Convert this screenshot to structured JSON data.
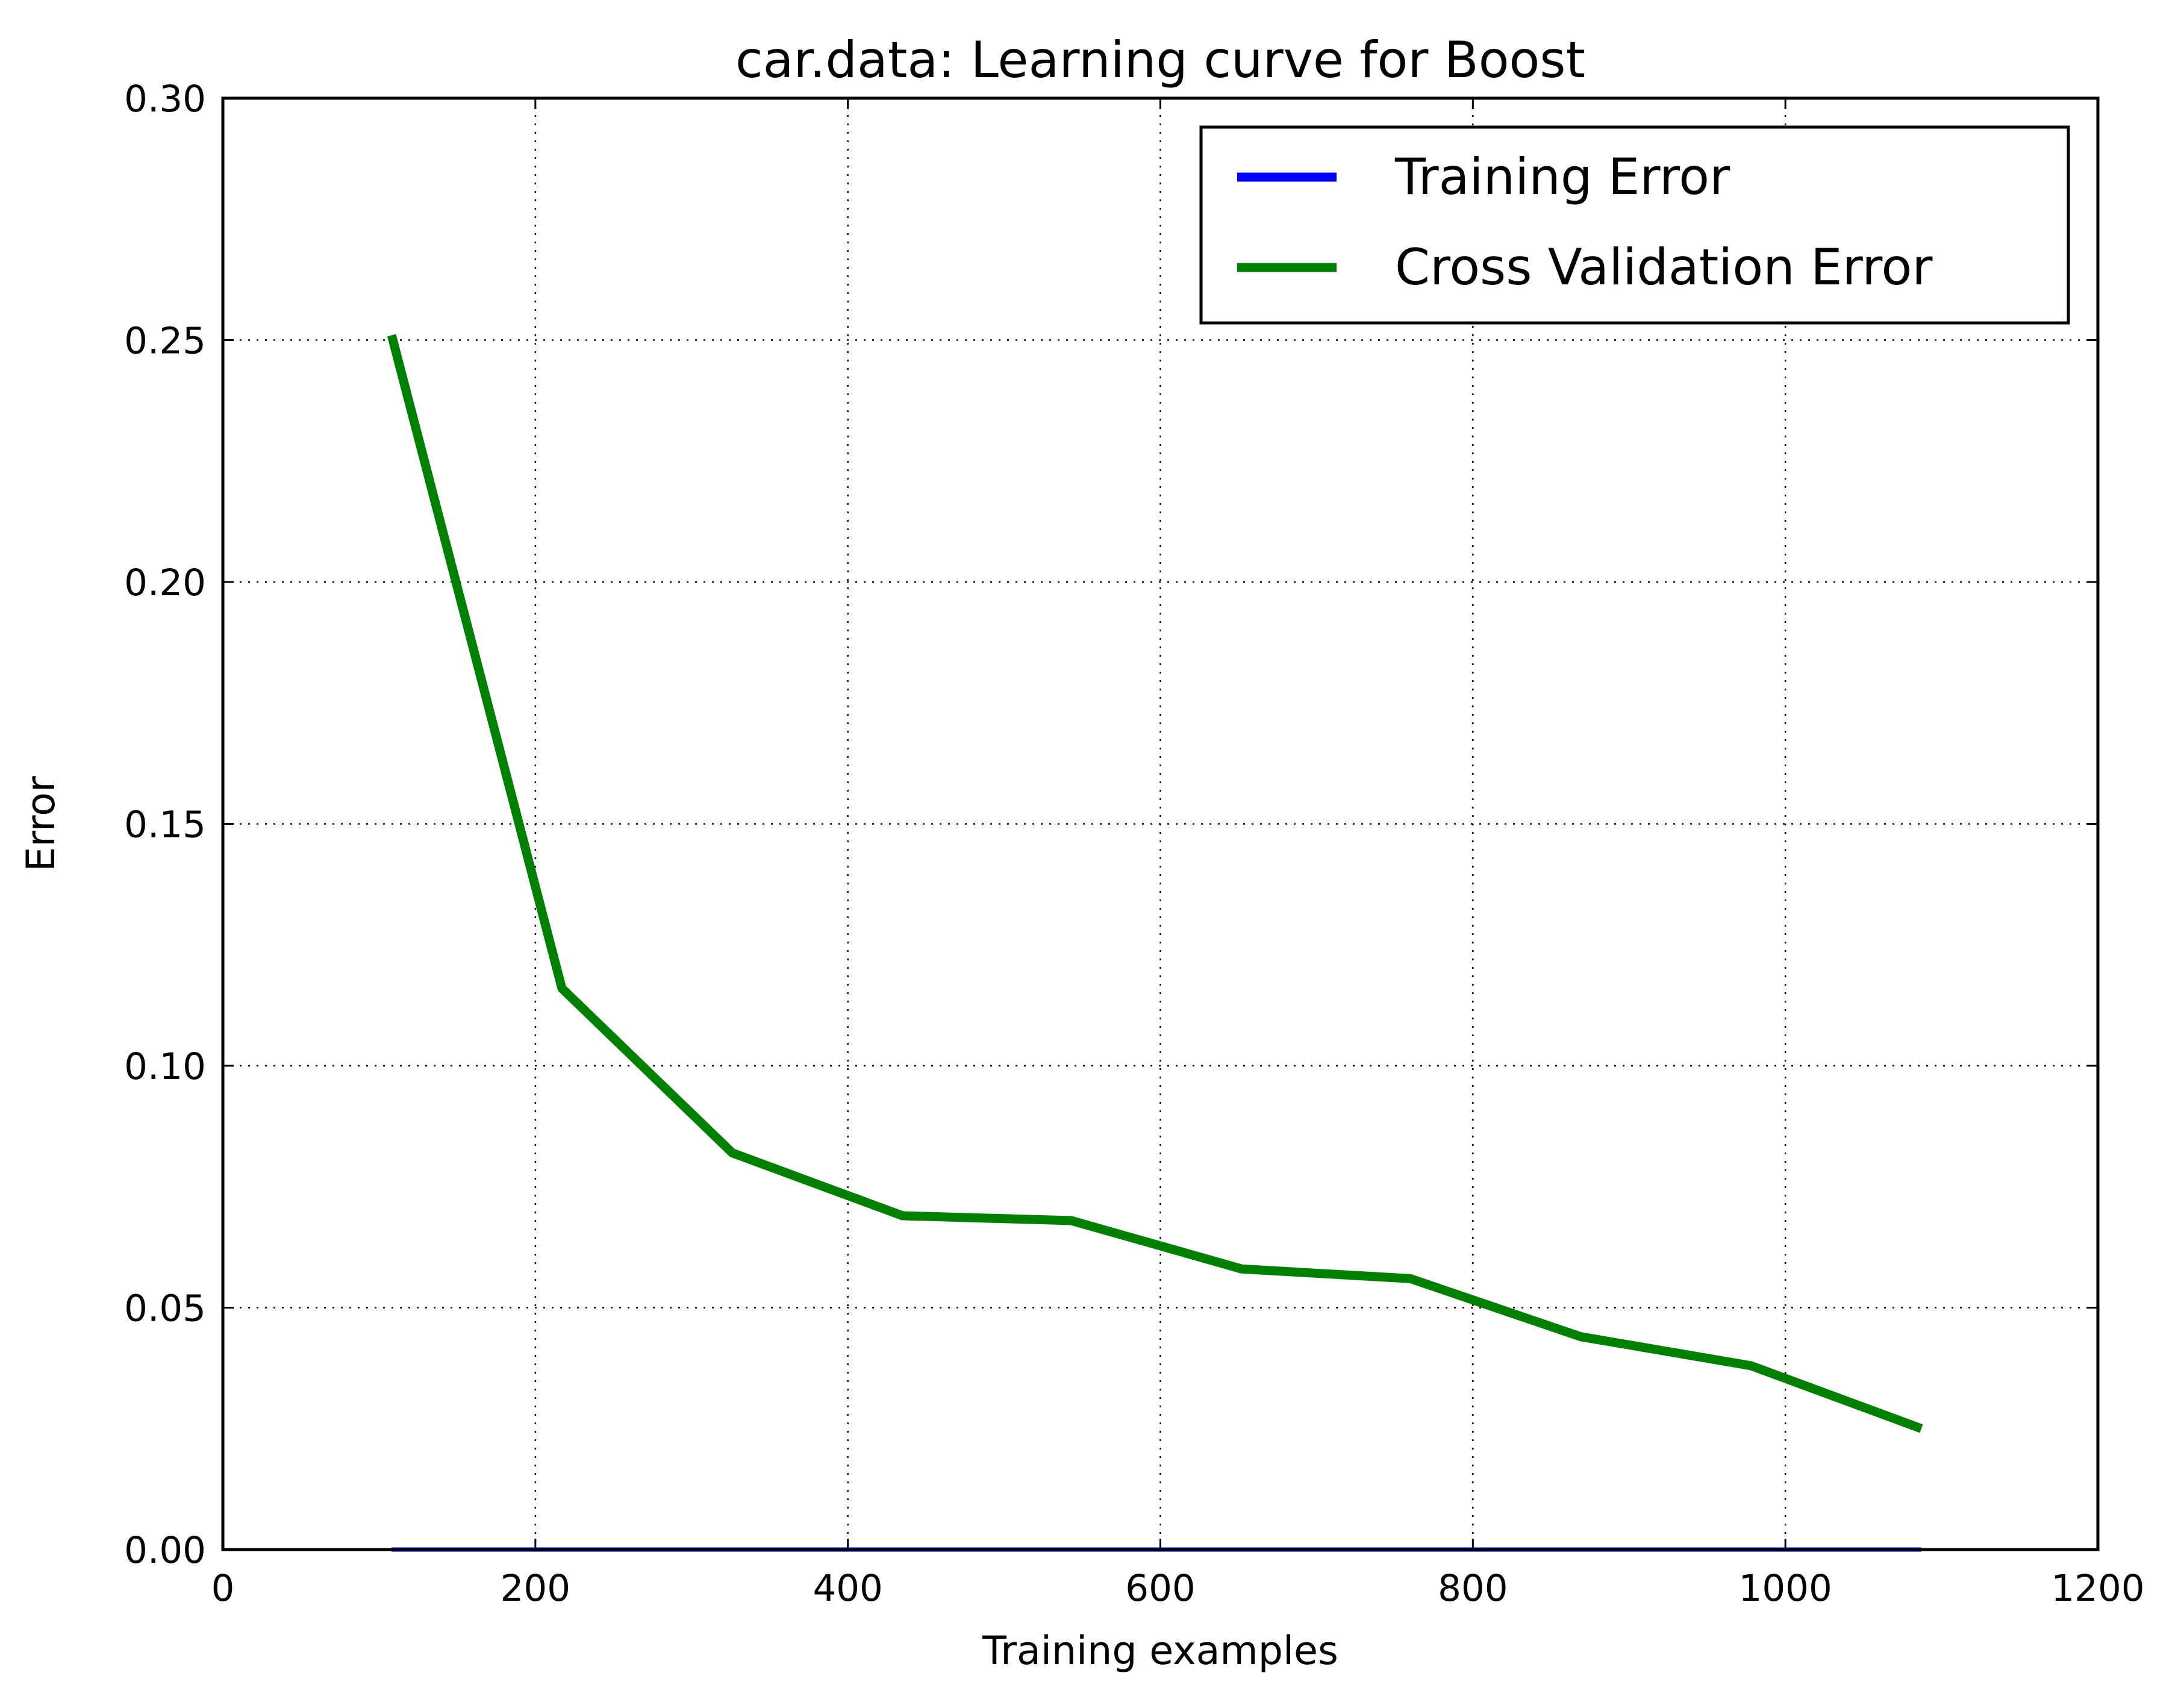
{
  "chart_data": {
    "type": "line",
    "title": "car.data: Learning curve for Boost",
    "xlabel": "Training examples",
    "ylabel": "Error",
    "xlim": [
      0,
      1200
    ],
    "ylim": [
      0,
      0.3
    ],
    "xticks": [
      "0",
      "200",
      "400",
      "600",
      "800",
      "1000",
      "1200"
    ],
    "yticks": [
      "0.00",
      "0.05",
      "0.10",
      "0.15",
      "0.20",
      "0.25",
      "0.30"
    ],
    "grid": true,
    "legend_position": "top-right",
    "series": [
      {
        "name": "Training Error",
        "color": "#0000ff",
        "x": [
          108,
          217,
          326,
          435,
          543,
          652,
          760,
          869,
          978,
          1087
        ],
        "y": [
          0,
          0,
          0,
          0,
          0,
          0,
          0,
          0,
          0,
          0
        ]
      },
      {
        "name": "Cross Validation Error",
        "color": "#008000",
        "x": [
          108,
          217,
          326,
          435,
          543,
          652,
          760,
          869,
          978,
          1087
        ],
        "y": [
          0.251,
          0.116,
          0.082,
          0.069,
          0.068,
          0.058,
          0.056,
          0.044,
          0.038,
          0.025
        ]
      }
    ]
  }
}
